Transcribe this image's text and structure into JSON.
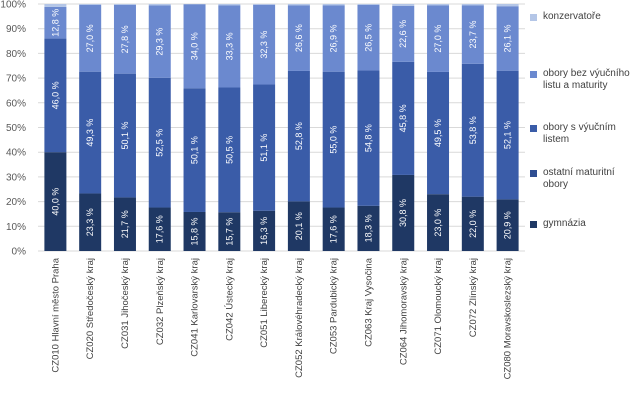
{
  "chart_data": {
    "type": "bar",
    "stacked": true,
    "categories": [
      "CZ010 Hlavní město Praha",
      "CZ020 Středočeský kraj",
      "CZ031 Jihočeský kraj",
      "CZ032 Plzeňský kraj",
      "CZ041 Karlovarský kraj",
      "CZ042 Ústecký kraj",
      "CZ051 Liberecký kraj",
      "CZ052 Královéhradecký kraj",
      "CZ053 Pardubický kraj",
      "CZ063 Kraj Vysočina",
      "CZ064 Jihomoravský kraj",
      "CZ071 Olomoucký kraj",
      "CZ072 Zlínský kraj",
      "CZ080 Moravskoslezský kraj"
    ],
    "series": [
      {
        "name": "gymnázia",
        "color": "#1f3864",
        "values": [
          40.0,
          23.3,
          21.7,
          17.6,
          15.8,
          15.7,
          16.3,
          20.1,
          17.6,
          18.3,
          30.8,
          23.0,
          22.0,
          20.9
        ],
        "labels": [
          "40,0 %",
          "23,3 %",
          "21,7 %",
          "17,6 %",
          "15,8 %",
          "15,7 %",
          "16,3 %",
          "20,1 %",
          "17,6 %",
          "18,3 %",
          "30,8 %",
          "23,0 %",
          "22,0 %",
          "20,9 %"
        ]
      },
      {
        "name": "ostatní maturitní obory",
        "color": "#2e4d91",
        "values": [
          0,
          0,
          0,
          0,
          0,
          0,
          0,
          0,
          0,
          0,
          0,
          0,
          0,
          0
        ],
        "labels": [
          "",
          "",
          "",
          "",
          "",
          "",
          "",
          "",
          "",
          "",
          "",
          "",
          "",
          ""
        ]
      },
      {
        "name": "obory s výučním listem",
        "color": "#3a5ca8",
        "values": [
          46.0,
          49.3,
          50.1,
          52.5,
          50.1,
          50.5,
          51.1,
          52.8,
          55.0,
          54.8,
          45.8,
          49.5,
          53.8,
          52.1
        ],
        "labels": [
          "46,0 %",
          "49,3 %",
          "50,1 %",
          "52,5 %",
          "50,1 %",
          "50,5 %",
          "51,1 %",
          "52,8 %",
          "55,0 %",
          "54,8 %",
          "45,8 %",
          "49,5 %",
          "53,8 %",
          "52,1 %"
        ]
      },
      {
        "name": "obory bez výučního listu a maturity",
        "color": "#6b89cf",
        "values": [
          12.8,
          27.0,
          27.8,
          29.3,
          34.0,
          33.3,
          32.3,
          26.6,
          26.9,
          26.5,
          22.6,
          27.0,
          23.7,
          26.1
        ],
        "labels": [
          "12,8 %",
          "27,0 %",
          "27,8 %",
          "29,3 %",
          "34,0 %",
          "33,3 %",
          "32,3 %",
          "26,6 %",
          "26,9 %",
          "26,5 %",
          "22,6 %",
          "27,0 %",
          "23,7 %",
          "26,1 %"
        ]
      },
      {
        "name": "konzervatoře",
        "color": "#b4c6e7",
        "values": [
          1.2,
          0.4,
          0.4,
          0.6,
          0.1,
          0.5,
          0.3,
          0.5,
          0.5,
          0.4,
          0.8,
          0.5,
          0.5,
          0.9
        ],
        "labels": [
          "",
          "",
          "",
          "",
          "",
          "",
          "",
          "",
          "",
          "",
          "",
          "",
          "",
          ""
        ]
      }
    ],
    "legend_order": [
      "konzervatoře",
      "obory bez výučního listu a maturity",
      "obory s výučním listem",
      "ostatní maturitní obory",
      "gymnázia"
    ],
    "legend_placement": "right",
    "y_ticks": [
      "0%",
      "10%",
      "20%",
      "30%",
      "40%",
      "50%",
      "60%",
      "70%",
      "80%",
      "90%",
      "100%"
    ],
    "ylim": [
      0,
      100
    ],
    "grid": true
  }
}
